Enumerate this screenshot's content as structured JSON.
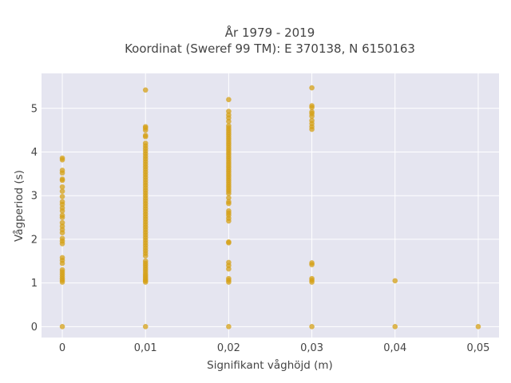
{
  "chart_data": {
    "type": "scatter",
    "title_line1": "År 1979 - 2019",
    "title_line2": "Koordinat (Sweref 99 TM): E 370138, N 6150163",
    "xlabel": "Signifikant våghöjd (m)",
    "ylabel": "Vågperiod (s)",
    "xlim": [
      -0.0025,
      0.0525
    ],
    "ylim": [
      -0.25,
      5.8
    ],
    "x_ticks": [
      {
        "value": 0,
        "label": "0"
      },
      {
        "value": 0.01,
        "label": "0,01"
      },
      {
        "value": 0.02,
        "label": "0,02"
      },
      {
        "value": 0.03,
        "label": "0,03"
      },
      {
        "value": 0.04,
        "label": "0,04"
      },
      {
        "value": 0.05,
        "label": "0,05"
      }
    ],
    "y_ticks": [
      {
        "value": 0,
        "label": "0"
      },
      {
        "value": 1,
        "label": "1"
      },
      {
        "value": 2,
        "label": "2"
      },
      {
        "value": 3,
        "label": "3"
      },
      {
        "value": 4,
        "label": "4"
      },
      {
        "value": 5,
        "label": "5"
      }
    ],
    "grid": true,
    "colors": {
      "marker": "#d4a017",
      "plot_bg": "#e5e5f0",
      "grid": "#ffffff"
    },
    "series": [
      {
        "points": [
          [
            0,
            0
          ],
          [
            0,
            1.02
          ],
          [
            0,
            1.06
          ],
          [
            0,
            1.1
          ],
          [
            0,
            1.15
          ],
          [
            0,
            1.2
          ],
          [
            0,
            1.25
          ],
          [
            0,
            1.3
          ],
          [
            0,
            1.45
          ],
          [
            0,
            1.52
          ],
          [
            0,
            1.58
          ],
          [
            0,
            1.9
          ],
          [
            0,
            1.96
          ],
          [
            0,
            2.02
          ],
          [
            0,
            2.15
          ],
          [
            0,
            2.22
          ],
          [
            0,
            2.3
          ],
          [
            0,
            2.38
          ],
          [
            0,
            2.5
          ],
          [
            0,
            2.55
          ],
          [
            0,
            2.65
          ],
          [
            0,
            2.72
          ],
          [
            0,
            2.8
          ],
          [
            0,
            2.86
          ],
          [
            0,
            2.98
          ],
          [
            0,
            3.1
          ],
          [
            0,
            3.2
          ],
          [
            0,
            3.35
          ],
          [
            0,
            3.38
          ],
          [
            0,
            3.52
          ],
          [
            0,
            3.58
          ],
          [
            0,
            3.82
          ],
          [
            0,
            3.86
          ],
          [
            0.01,
            0
          ],
          [
            0.01,
            1.02
          ],
          [
            0.01,
            1.05
          ],
          [
            0.01,
            1.08
          ],
          [
            0.01,
            1.12
          ],
          [
            0.01,
            1.16
          ],
          [
            0.01,
            1.2
          ],
          [
            0.01,
            1.25
          ],
          [
            0.01,
            1.3
          ],
          [
            0.01,
            1.35
          ],
          [
            0.01,
            1.4
          ],
          [
            0.01,
            1.45
          ],
          [
            0.01,
            1.5
          ],
          [
            0.01,
            1.62
          ],
          [
            0.01,
            1.68
          ],
          [
            0.01,
            1.74
          ],
          [
            0.01,
            1.8
          ],
          [
            0.01,
            1.86
          ],
          [
            0.01,
            1.92
          ],
          [
            0.01,
            1.98
          ],
          [
            0.01,
            2.04
          ],
          [
            0.01,
            2.1
          ],
          [
            0.01,
            2.16
          ],
          [
            0.01,
            2.22
          ],
          [
            0.01,
            2.28
          ],
          [
            0.01,
            2.34
          ],
          [
            0.01,
            2.4
          ],
          [
            0.01,
            2.46
          ],
          [
            0.01,
            2.52
          ],
          [
            0.01,
            2.58
          ],
          [
            0.01,
            2.64
          ],
          [
            0.01,
            2.7
          ],
          [
            0.01,
            2.76
          ],
          [
            0.01,
            2.82
          ],
          [
            0.01,
            2.88
          ],
          [
            0.01,
            2.94
          ],
          [
            0.01,
            3.0
          ],
          [
            0.01,
            3.06
          ],
          [
            0.01,
            3.12
          ],
          [
            0.01,
            3.18
          ],
          [
            0.01,
            3.24
          ],
          [
            0.01,
            3.3
          ],
          [
            0.01,
            3.36
          ],
          [
            0.01,
            3.42
          ],
          [
            0.01,
            3.48
          ],
          [
            0.01,
            3.54
          ],
          [
            0.01,
            3.6
          ],
          [
            0.01,
            3.66
          ],
          [
            0.01,
            3.72
          ],
          [
            0.01,
            3.78
          ],
          [
            0.01,
            3.84
          ],
          [
            0.01,
            3.9
          ],
          [
            0.01,
            3.96
          ],
          [
            0.01,
            4.02
          ],
          [
            0.01,
            4.08
          ],
          [
            0.01,
            4.14
          ],
          [
            0.01,
            4.2
          ],
          [
            0.01,
            4.35
          ],
          [
            0.01,
            4.38
          ],
          [
            0.01,
            4.5
          ],
          [
            0.01,
            4.55
          ],
          [
            0.01,
            4.58
          ],
          [
            0.01,
            5.42
          ],
          [
            0.02,
            0
          ],
          [
            0.02,
            1.02
          ],
          [
            0.02,
            1.06
          ],
          [
            0.02,
            1.1
          ],
          [
            0.02,
            1.32
          ],
          [
            0.02,
            1.4
          ],
          [
            0.02,
            1.47
          ],
          [
            0.02,
            1.92
          ],
          [
            0.02,
            1.94
          ],
          [
            0.02,
            2.42
          ],
          [
            0.02,
            2.48
          ],
          [
            0.02,
            2.55
          ],
          [
            0.02,
            2.6
          ],
          [
            0.02,
            2.65
          ],
          [
            0.02,
            2.82
          ],
          [
            0.02,
            2.86
          ],
          [
            0.02,
            2.95
          ],
          [
            0.02,
            3.05
          ],
          [
            0.02,
            3.1
          ],
          [
            0.02,
            3.15
          ],
          [
            0.02,
            3.2
          ],
          [
            0.02,
            3.25
          ],
          [
            0.02,
            3.3
          ],
          [
            0.02,
            3.35
          ],
          [
            0.02,
            3.4
          ],
          [
            0.02,
            3.45
          ],
          [
            0.02,
            3.5
          ],
          [
            0.02,
            3.55
          ],
          [
            0.02,
            3.6
          ],
          [
            0.02,
            3.65
          ],
          [
            0.02,
            3.7
          ],
          [
            0.02,
            3.75
          ],
          [
            0.02,
            3.8
          ],
          [
            0.02,
            3.85
          ],
          [
            0.02,
            3.9
          ],
          [
            0.02,
            3.95
          ],
          [
            0.02,
            4.0
          ],
          [
            0.02,
            4.05
          ],
          [
            0.02,
            4.1
          ],
          [
            0.02,
            4.15
          ],
          [
            0.02,
            4.2
          ],
          [
            0.02,
            4.25
          ],
          [
            0.02,
            4.3
          ],
          [
            0.02,
            4.35
          ],
          [
            0.02,
            4.4
          ],
          [
            0.02,
            4.45
          ],
          [
            0.02,
            4.5
          ],
          [
            0.02,
            4.55
          ],
          [
            0.02,
            4.6
          ],
          [
            0.02,
            4.7
          ],
          [
            0.02,
            4.78
          ],
          [
            0.02,
            4.85
          ],
          [
            0.02,
            4.93
          ],
          [
            0.02,
            5.2
          ],
          [
            0.03,
            0
          ],
          [
            0.03,
            1.02
          ],
          [
            0.03,
            1.06
          ],
          [
            0.03,
            1.1
          ],
          [
            0.03,
            1.42
          ],
          [
            0.03,
            1.46
          ],
          [
            0.03,
            4.52
          ],
          [
            0.03,
            4.58
          ],
          [
            0.03,
            4.65
          ],
          [
            0.03,
            4.72
          ],
          [
            0.03,
            4.82
          ],
          [
            0.03,
            4.88
          ],
          [
            0.03,
            4.92
          ],
          [
            0.03,
            5.02
          ],
          [
            0.03,
            5.06
          ],
          [
            0.03,
            5.47
          ],
          [
            0.04,
            0
          ],
          [
            0.04,
            1.05
          ],
          [
            0.05,
            0
          ]
        ]
      }
    ]
  }
}
